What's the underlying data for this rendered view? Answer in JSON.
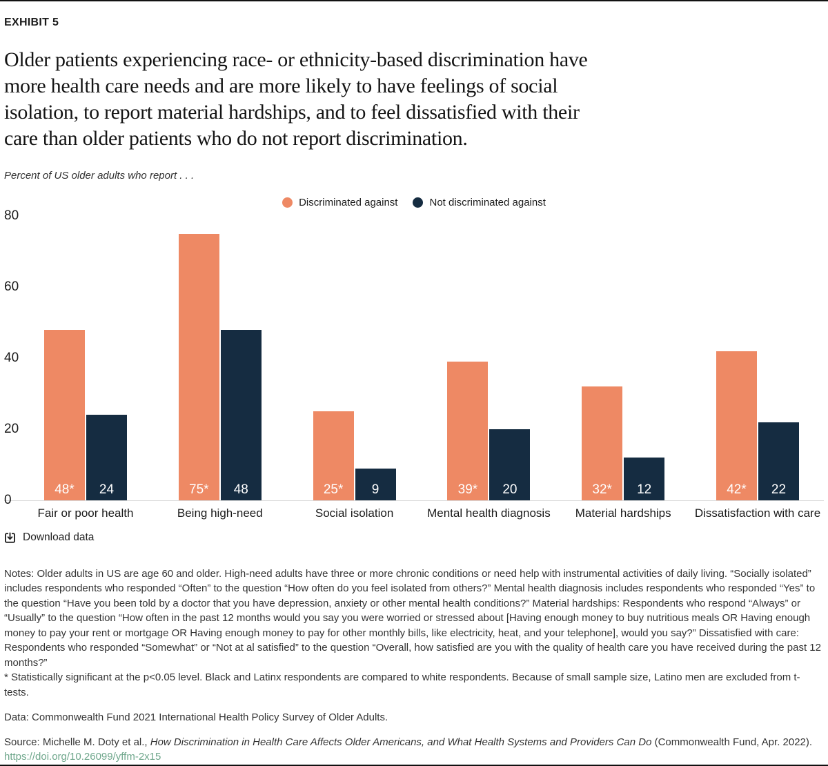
{
  "page": {
    "exhibit_label": "EXHIBIT 5",
    "title_lines": [
      "Older patients experiencing race- or ethnicity-based discrimination have",
      "more health care needs and are more likely to have feelings of social",
      "isolation, to report material hardships, and to feel dissatisfied with their",
      "care than older patients who do not report discrimination."
    ],
    "subtitle": "Percent of US older adults who report . . .",
    "download_label": "Download data",
    "notes": "Notes: Older adults in US are age 60 and older. High-need adults have three or more chronic conditions or need help with instrumental activities of daily living. “Socially isolated” includes respondents who responded “Often” to the question “How often do you feel isolated from others?” Mental health diagnosis includes respondents who responded “Yes” to the question “Have you been told by a doctor that you have depression, anxiety or other mental health conditions?” Material hardships: Respondents who respond “Always” or “Usually” to the question “How often in the past 12 months would you say you were worried or stressed about [Having enough money to buy nutritious meals OR Having enough money to pay your rent or mortgage OR Having enough money to pay for other monthly bills, like electricity, heat, and your telephone], would you say?” Dissatisfied with care: Respondents who responded “Somewhat” or “Not at al satisfied” to the question “Overall, how satisfied are you with the quality of health care you have received during the past 12 months?”",
    "significance_note": "* Statistically significant at the p<0.05 level. Black and Latinx respondents are compared to white respondents. Because of small sample size, Latino men are excluded from t-tests.",
    "data_line": "Data: Commonwealth Fund 2021 International Health Policy Survey of Older Adults.",
    "source_prefix": "Source: Michelle M. Doty et al., ",
    "source_italic": "How Discrimination in Health Care Affects Older Americans, and What Health Systems and Providers Can Do",
    "source_suffix": " (Commonwealth Fund, Apr. 2022).",
    "source_link": "https://doi.org/10.26099/yffm-2x15"
  },
  "colors": {
    "discriminated": "#EE8964",
    "not_discriminated": "#152C41",
    "link": "#6FA78C",
    "axis_line": "#D9D9D9"
  },
  "chart_data": {
    "type": "bar",
    "title": "Percent of US older adults who report . . .",
    "categories": [
      "Fair or poor health",
      "Being high-need",
      "Social isolation",
      "Mental health diagnosis",
      "Material hardships",
      "Dissatisfaction with care"
    ],
    "series": [
      {
        "name": "Discriminated against",
        "color": "#EE8964",
        "values": [
          48,
          75,
          25,
          39,
          32,
          42
        ],
        "labels": [
          "48*",
          "75*",
          "25*",
          "39*",
          "32*",
          "42*"
        ]
      },
      {
        "name": "Not discriminated against",
        "color": "#152C41",
        "values": [
          24,
          48,
          9,
          20,
          12,
          22
        ],
        "labels": [
          "24",
          "48",
          "9",
          "20",
          "12",
          "22"
        ]
      }
    ],
    "xlabel": "",
    "ylabel": "",
    "ylim": [
      0,
      80
    ],
    "yticks": [
      0,
      20,
      40,
      60,
      80
    ],
    "grid": false,
    "legend_position": "top-center",
    "value_labels_position": "inside-bottom"
  }
}
